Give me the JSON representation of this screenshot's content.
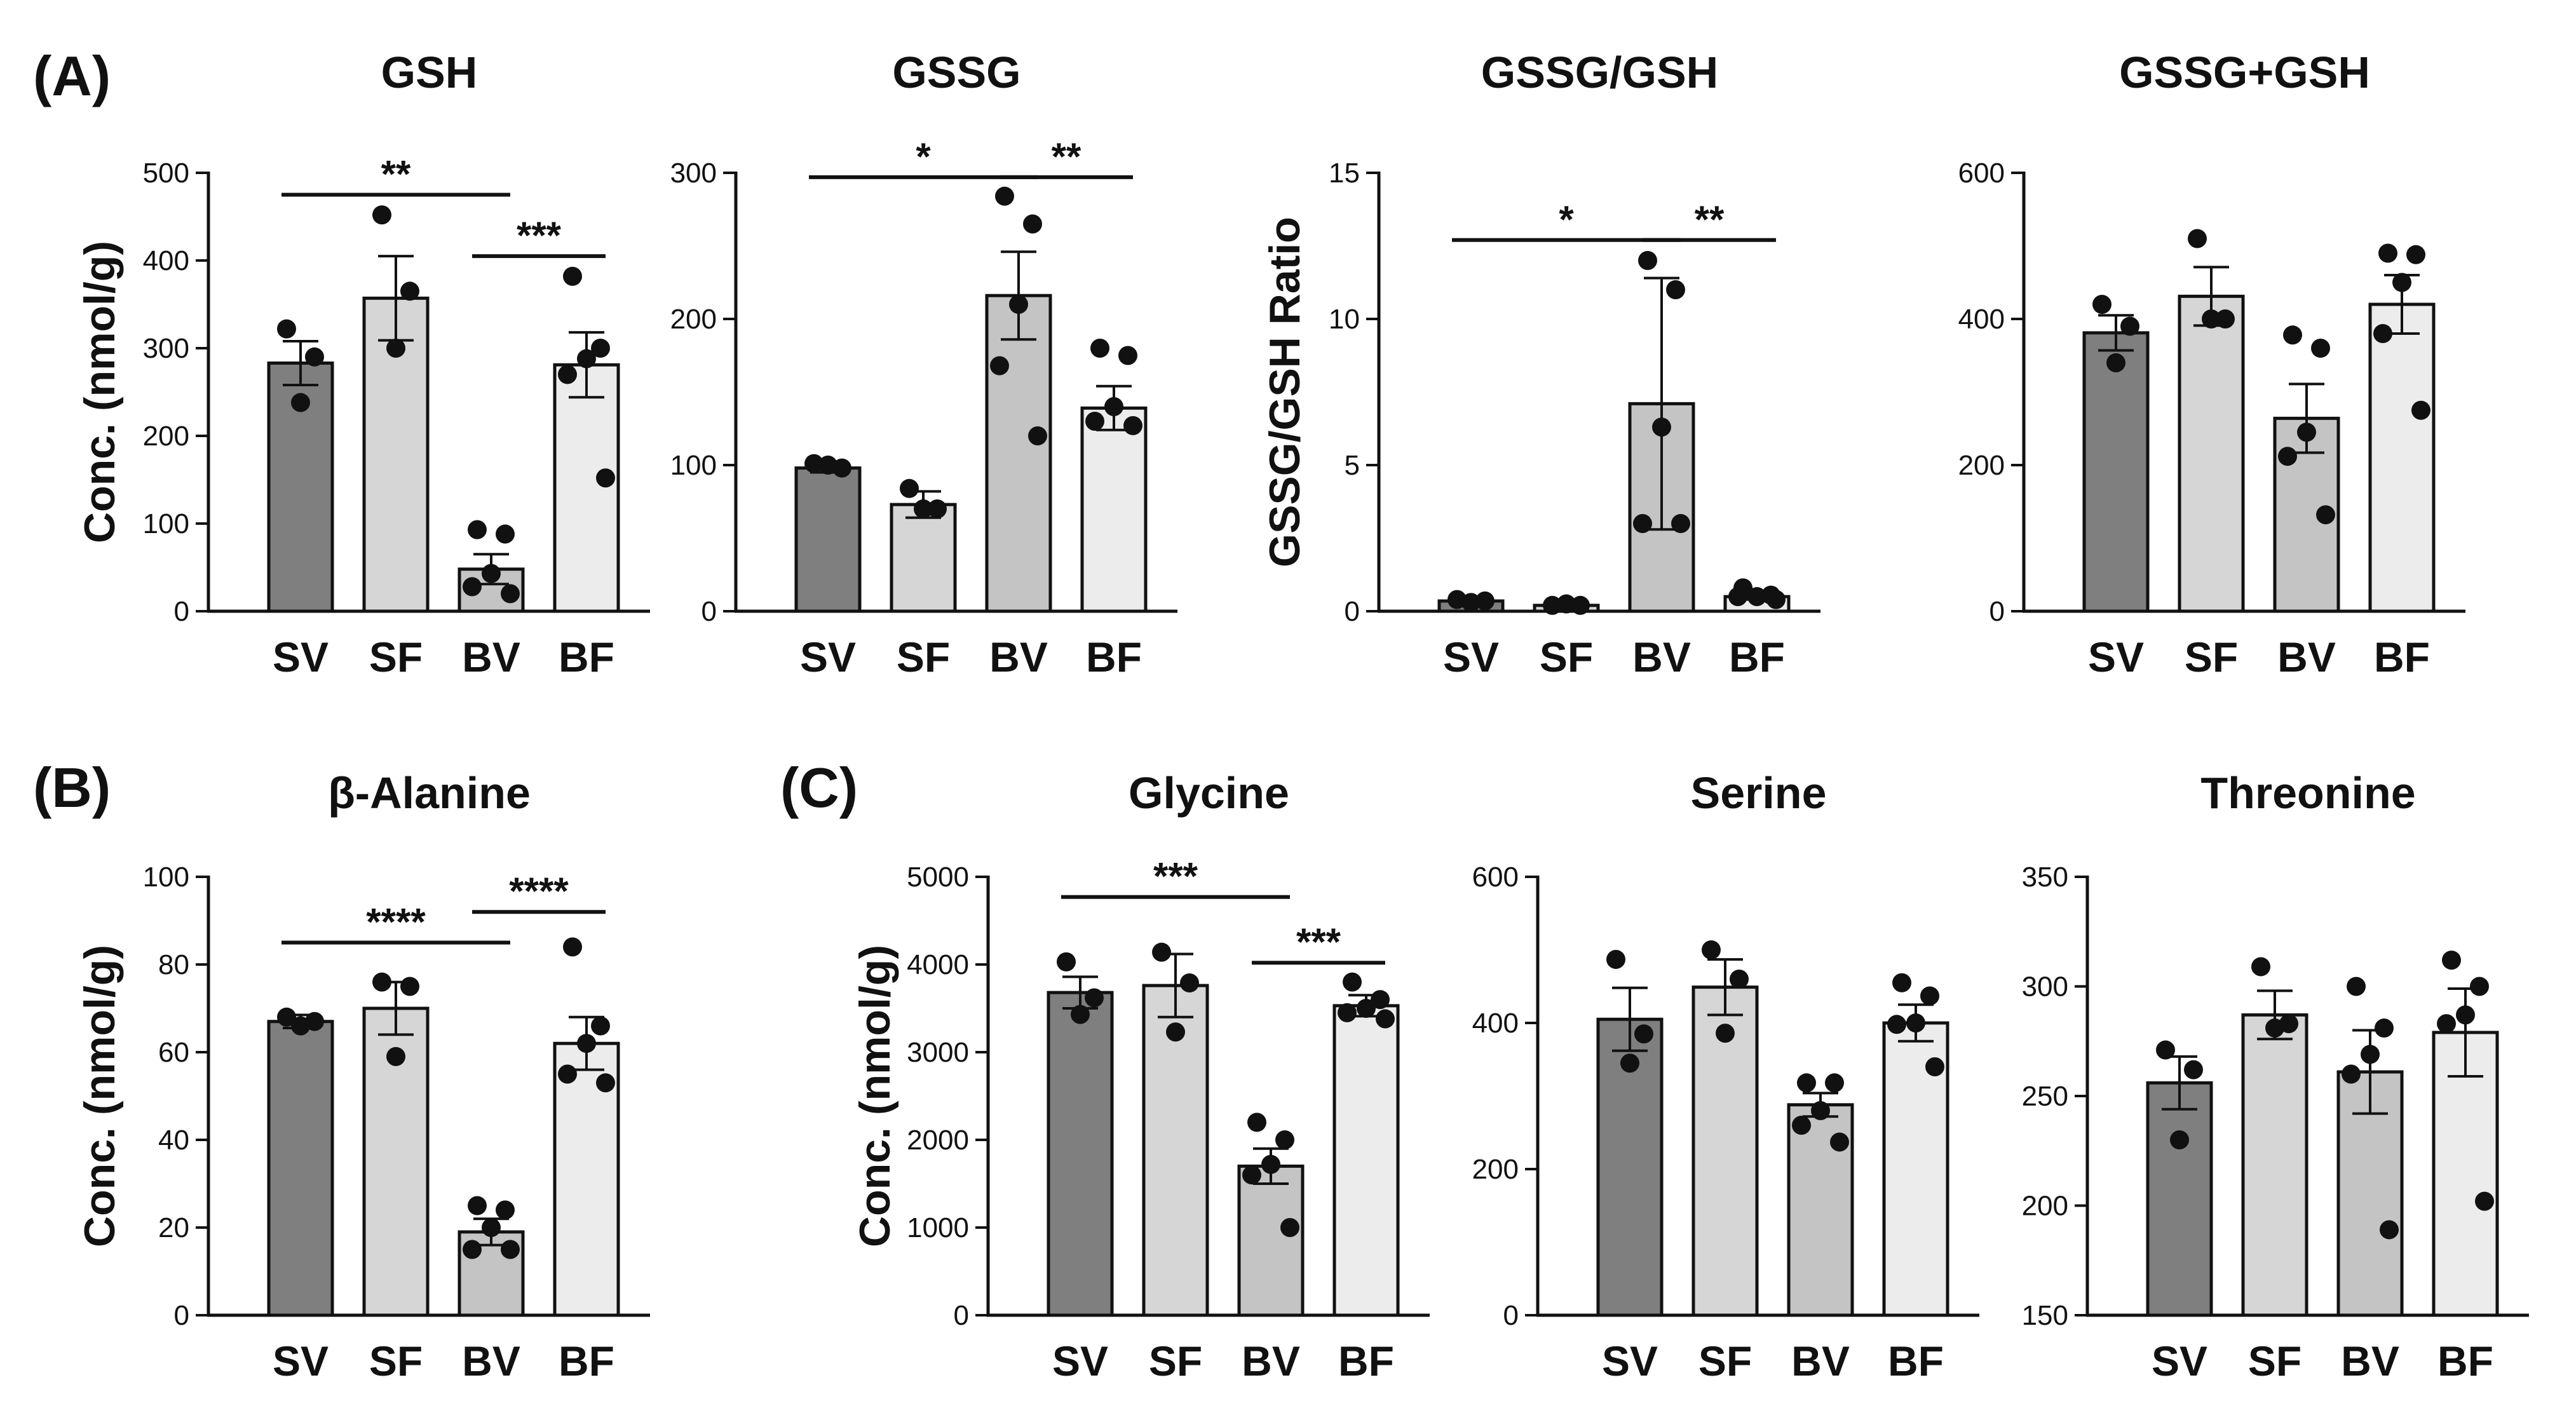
{
  "panel_labels": [
    "(A)",
    "(B)",
    "(C)"
  ],
  "colors": {
    "SV": "#7f7f7f",
    "SF": "#d6d6d6",
    "BV": "#c4c4c4",
    "BF": "#ececec",
    "stroke": "#111111"
  },
  "chart_data": [
    {
      "type": "bar",
      "title": "GSH",
      "ylabel": "Conc. (nmol/g)",
      "ylim": [
        0,
        500
      ],
      "yticks": [
        "0",
        "100",
        "200",
        "300",
        "400",
        "500"
      ],
      "categories": [
        "SV",
        "SF",
        "BV",
        "BF"
      ],
      "values": [
        283,
        357,
        48,
        281
      ],
      "sem": [
        25,
        48,
        17,
        37
      ],
      "points": [
        [
          322,
          290,
          238
        ],
        [
          452,
          365,
          300
        ],
        [
          93,
          88,
          43,
          28,
          20
        ],
        [
          382,
          300,
          288,
          270,
          152
        ]
      ],
      "brackets": [
        {
          "from": 0,
          "to": 2,
          "y": 475,
          "label": "**"
        },
        {
          "from": 2,
          "to": 3,
          "y": 405,
          "label": "***"
        }
      ]
    },
    {
      "type": "bar",
      "title": "GSSG",
      "ylabel": "",
      "ylim": [
        0,
        300
      ],
      "yticks": [
        "0",
        "100",
        "200",
        "300"
      ],
      "categories": [
        "SV",
        "SF",
        "BV",
        "BF"
      ],
      "values": [
        98,
        73,
        216,
        139
      ],
      "sem": [
        3,
        9,
        30,
        15
      ],
      "points": [
        [
          101,
          98,
          100
        ],
        [
          84,
          70,
          70
        ],
        [
          284,
          265,
          210,
          168,
          120
        ],
        [
          180,
          175,
          140,
          130,
          127
        ]
      ],
      "brackets": [
        {
          "from": 0,
          "to": 2,
          "y": 297,
          "label": "*"
        },
        {
          "from": 2,
          "to": 3,
          "y": 297,
          "label": "**"
        }
      ]
    },
    {
      "type": "bar",
      "title": "GSSG/GSH",
      "ylabel": "GSSG/GSH Ratio",
      "ylim": [
        0,
        15
      ],
      "yticks": [
        "0",
        "5",
        "10",
        "15"
      ],
      "categories": [
        "SV",
        "SF",
        "BV",
        "BF"
      ],
      "values": [
        0.35,
        0.2,
        7.1,
        0.5
      ],
      "sem": [
        0.05,
        0.03,
        4.3,
        0.1
      ],
      "points": [
        [
          0.4,
          0.35,
          0.3
        ],
        [
          0.2,
          0.2,
          0.25
        ],
        [
          12.0,
          11.0,
          6.3,
          3.0,
          3.0
        ],
        [
          0.8,
          0.55,
          0.5,
          0.5,
          0.4
        ]
      ],
      "brackets": [
        {
          "from": 0,
          "to": 2,
          "y": 12.7,
          "label": "*"
        },
        {
          "from": 2,
          "to": 3,
          "y": 12.7,
          "label": "**"
        }
      ]
    },
    {
      "type": "bar",
      "title": "GSSG+GSH",
      "ylabel": "",
      "ylim": [
        0,
        600
      ],
      "yticks": [
        "0",
        "200",
        "400",
        "600"
      ],
      "categories": [
        "SV",
        "SF",
        "BV",
        "BF"
      ],
      "values": [
        381,
        431,
        264,
        420
      ],
      "sem": [
        24,
        40,
        47,
        40
      ],
      "points": [
        [
          420,
          390,
          340
        ],
        [
          510,
          400,
          400
        ],
        [
          378,
          360,
          245,
          212,
          132
        ],
        [
          490,
          488,
          450,
          380,
          275
        ]
      ],
      "brackets": []
    },
    {
      "type": "bar",
      "title": "β-Alanine",
      "ylabel": "Conc. (nmol/g)",
      "ylim": [
        0,
        100
      ],
      "yticks": [
        "0",
        "20",
        "40",
        "60",
        "80",
        "100"
      ],
      "categories": [
        "SV",
        "SF",
        "BV",
        "BF"
      ],
      "values": [
        67,
        70,
        19,
        62
      ],
      "sem": [
        1.5,
        6,
        3,
        6
      ],
      "points": [
        [
          68,
          67,
          66
        ],
        [
          76,
          75,
          59
        ],
        [
          25,
          24,
          20,
          15,
          15
        ],
        [
          84,
          66,
          62,
          55,
          53
        ]
      ],
      "brackets": [
        {
          "from": 0,
          "to": 2,
          "y": 85,
          "label": "****"
        },
        {
          "from": 2,
          "to": 3,
          "y": 92,
          "label": "****"
        }
      ]
    },
    {
      "type": "bar",
      "title": "Glycine",
      "ylabel": "Conc. (nmol/g)",
      "ylim": [
        0,
        5000
      ],
      "yticks": [
        "0",
        "1000",
        "2000",
        "3000",
        "4000",
        "5000"
      ],
      "categories": [
        "SV",
        "SF",
        "BV",
        "BF"
      ],
      "values": [
        3680,
        3760,
        1700,
        3530
      ],
      "sem": [
        180,
        360,
        200,
        120
      ],
      "points": [
        [
          4030,
          3620,
          3430
        ],
        [
          4140,
          3790,
          3230
        ],
        [
          2200,
          2000,
          1720,
          1600,
          1000
        ],
        [
          3800,
          3600,
          3500,
          3450,
          3380
        ]
      ],
      "brackets": [
        {
          "from": 0,
          "to": 2,
          "y": 4770,
          "label": "***"
        },
        {
          "from": 2,
          "to": 3,
          "y": 4020,
          "label": "***"
        }
      ]
    },
    {
      "type": "bar",
      "title": "Serine",
      "ylabel": "",
      "ylim": [
        0,
        600
      ],
      "yticks": [
        "0",
        "200",
        "400",
        "600"
      ],
      "categories": [
        "SV",
        "SF",
        "BV",
        "BF"
      ],
      "values": [
        405,
        449,
        288,
        400
      ],
      "sem": [
        43,
        38,
        16,
        25
      ],
      "points": [
        [
          487,
          385,
          345
        ],
        [
          500,
          460,
          386
        ],
        [
          318,
          318,
          280,
          260,
          237
        ],
        [
          455,
          437,
          400,
          398,
          340
        ]
      ],
      "brackets": []
    },
    {
      "type": "bar",
      "title": "Threonine",
      "ylabel": "",
      "ylim": [
        150,
        350
      ],
      "yticks": [
        "150",
        "200",
        "250",
        "300",
        "350"
      ],
      "categories": [
        "SV",
        "SF",
        "BV",
        "BF"
      ],
      "values": [
        256,
        287,
        261,
        279
      ],
      "sem": [
        12,
        11,
        19,
        20
      ],
      "points": [
        [
          271,
          262,
          230
        ],
        [
          309,
          283,
          281
        ],
        [
          300,
          281,
          269,
          260,
          189
        ],
        [
          312,
          300,
          287,
          283,
          202
        ]
      ],
      "brackets": []
    }
  ]
}
